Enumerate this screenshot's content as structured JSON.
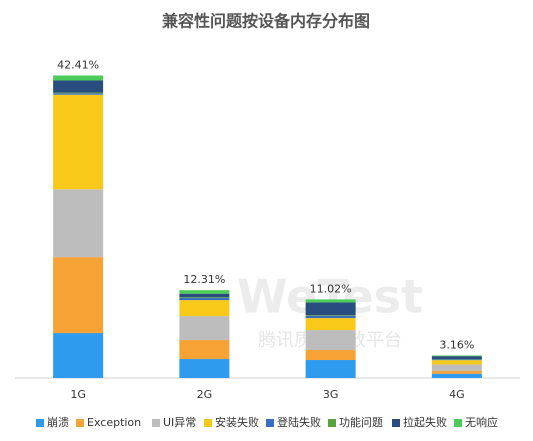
{
  "chart_data": {
    "type": "stacked-bar",
    "title": "兼容性问题按设备内存分布图",
    "categories": [
      "1G",
      "2G",
      "3G",
      "4G"
    ],
    "series": [
      {
        "name": "崩溃",
        "color": "#2e9bef",
        "values": [
          6.3,
          2.66,
          2.52,
          0.6
        ]
      },
      {
        "name": "Exception",
        "color": "#f7a234",
        "values": [
          10.64,
          2.66,
          1.4,
          0.4
        ]
      },
      {
        "name": "UI异常",
        "color": "#bdbdbd",
        "values": [
          9.52,
          3.36,
          2.8,
          0.9
        ]
      },
      {
        "name": "安装失败",
        "color": "#f9c91a",
        "values": [
          13.25,
          2.24,
          1.68,
          0.6
        ]
      },
      {
        "name": "登陆失败",
        "color": "#3a6fc0",
        "values": [
          0.2,
          0.3,
          0.3,
          0.1
        ]
      },
      {
        "name": "功能问题",
        "color": "#5aa33c",
        "values": [
          0.1,
          0.1,
          0.1,
          0.06
        ]
      },
      {
        "name": "拉起失败",
        "color": "#2a4d7f",
        "values": [
          1.7,
          0.5,
          1.8,
          0.4
        ]
      },
      {
        "name": "无响应",
        "color": "#4ccd5a",
        "values": [
          0.7,
          0.49,
          0.42,
          0.1
        ]
      }
    ],
    "totals": [
      42.41,
      12.31,
      11.02,
      3.16
    ],
    "total_labels": [
      "42.41%",
      "12.31%",
      "11.02%",
      "3.16%"
    ],
    "ylim": [
      0,
      45
    ],
    "legend": "bottom",
    "watermark": {
      "title": "WeTest",
      "subtitle": "腾讯质量开放平台"
    }
  }
}
